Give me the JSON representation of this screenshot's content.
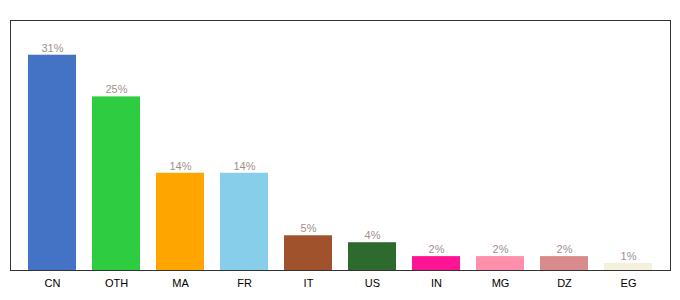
{
  "chart_data": {
    "type": "bar",
    "categories": [
      "CN",
      "OTH",
      "MA",
      "FR",
      "IT",
      "US",
      "IN",
      "MG",
      "DZ",
      "EG"
    ],
    "values": [
      31,
      25,
      14,
      14,
      5,
      4,
      2,
      2,
      2,
      1
    ],
    "value_labels": [
      "31%",
      "25%",
      "14%",
      "14%",
      "5%",
      "4%",
      "2%",
      "2%",
      "2%",
      "1%"
    ],
    "colors": [
      "#4472C4",
      "#2ECC40",
      "#FFA500",
      "#87CEEB",
      "#A0522D",
      "#2D6A2D",
      "#FF1493",
      "#FF8FAB",
      "#D98A8A",
      "#F5F0DC"
    ],
    "ylim": [
      0,
      36
    ],
    "data_labels": true,
    "tick_labels": "x",
    "grid": false
  }
}
